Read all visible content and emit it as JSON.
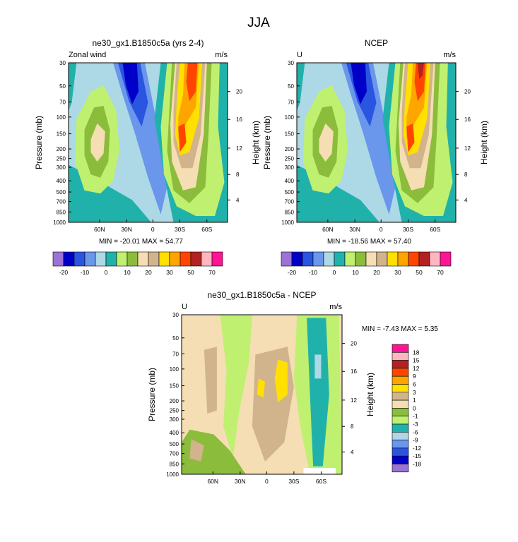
{
  "title": "JJA",
  "chart_data": [
    {
      "type": "contour",
      "title": "ne30_gx1.B1850c5a (yrs 2-4)",
      "left_label": "Zonal wind",
      "right_label": "m/s",
      "ylabel": "Pressure (mb)",
      "ylabel_right": "Height (km)",
      "x_ticks": [
        "60N",
        "30N",
        "0",
        "30S",
        "60S"
      ],
      "pressure_ticks": [
        "30",
        "50",
        "70",
        "100",
        "150",
        "200",
        "250",
        "300",
        "400",
        "500",
        "700",
        "850",
        "1000"
      ],
      "height_ticks": [
        "20",
        "16",
        "12",
        "8",
        "4"
      ],
      "stats": "MIN = -20.01   MAX =  54.77",
      "colorbar": {
        "orientation": "horizontal",
        "labels": [
          "-20",
          "-10",
          "0",
          "10",
          "20",
          "30",
          "50",
          "70"
        ],
        "colors": [
          "#9b72d6",
          "#0000c8",
          "#2a55e0",
          "#6a96ec",
          "#add8e6",
          "#20b2aa",
          "#c0f070",
          "#8cbc3c",
          "#f5deb3",
          "#d2b48c",
          "#ffe000",
          "#ffa500",
          "#ff4500",
          "#b22222",
          "#ffb6c1",
          "#ff1493"
        ]
      }
    },
    {
      "type": "contour",
      "title": "NCEP",
      "left_label": "U",
      "right_label": "m/s",
      "ylabel": "Pressure (mb)",
      "ylabel_right": "Height (km)",
      "x_ticks": [
        "60N",
        "30N",
        "0",
        "30S",
        "60S"
      ],
      "pressure_ticks": [
        "30",
        "50",
        "70",
        "100",
        "150",
        "200",
        "250",
        "300",
        "400",
        "500",
        "700",
        "850",
        "1000"
      ],
      "height_ticks": [
        "20",
        "16",
        "12",
        "8",
        "4"
      ],
      "stats": "MIN = -18.56   MAX =  57.40",
      "colorbar": {
        "orientation": "horizontal",
        "labels": [
          "-20",
          "-10",
          "0",
          "10",
          "20",
          "30",
          "50",
          "70"
        ],
        "colors": [
          "#9b72d6",
          "#0000c8",
          "#2a55e0",
          "#6a96ec",
          "#add8e6",
          "#20b2aa",
          "#c0f070",
          "#8cbc3c",
          "#f5deb3",
          "#d2b48c",
          "#ffe000",
          "#ffa500",
          "#ff4500",
          "#b22222",
          "#ffb6c1",
          "#ff1493"
        ]
      }
    },
    {
      "type": "contour",
      "title": "ne30_gx1.B1850c5a - NCEP",
      "left_label": "U",
      "right_label": "m/s",
      "ylabel": "Pressure (mb)",
      "ylabel_right": "Height (km)",
      "x_ticks": [
        "60N",
        "30N",
        "0",
        "30S",
        "60S"
      ],
      "pressure_ticks": [
        "30",
        "50",
        "70",
        "100",
        "150",
        "200",
        "250",
        "300",
        "400",
        "500",
        "700",
        "850",
        "1000"
      ],
      "height_ticks": [
        "20",
        "16",
        "12",
        "8",
        "4"
      ],
      "stats": "MIN =  -7.43   MAX =   5.35",
      "colorbar": {
        "orientation": "vertical",
        "labels": [
          "18",
          "15",
          "12",
          "9",
          "6",
          "3",
          "1",
          "0",
          "-1",
          "-3",
          "-6",
          "-9",
          "-12",
          "-15",
          "-18"
        ],
        "colors": [
          "#ff1493",
          "#ffb6c1",
          "#b22222",
          "#ff4500",
          "#ffa500",
          "#ffe000",
          "#d2b48c",
          "#f5deb3",
          "#8cbc3c",
          "#c0f070",
          "#20b2aa",
          "#add8e6",
          "#6a96ec",
          "#2a55e0",
          "#0000c8",
          "#9b72d6"
        ]
      }
    }
  ]
}
